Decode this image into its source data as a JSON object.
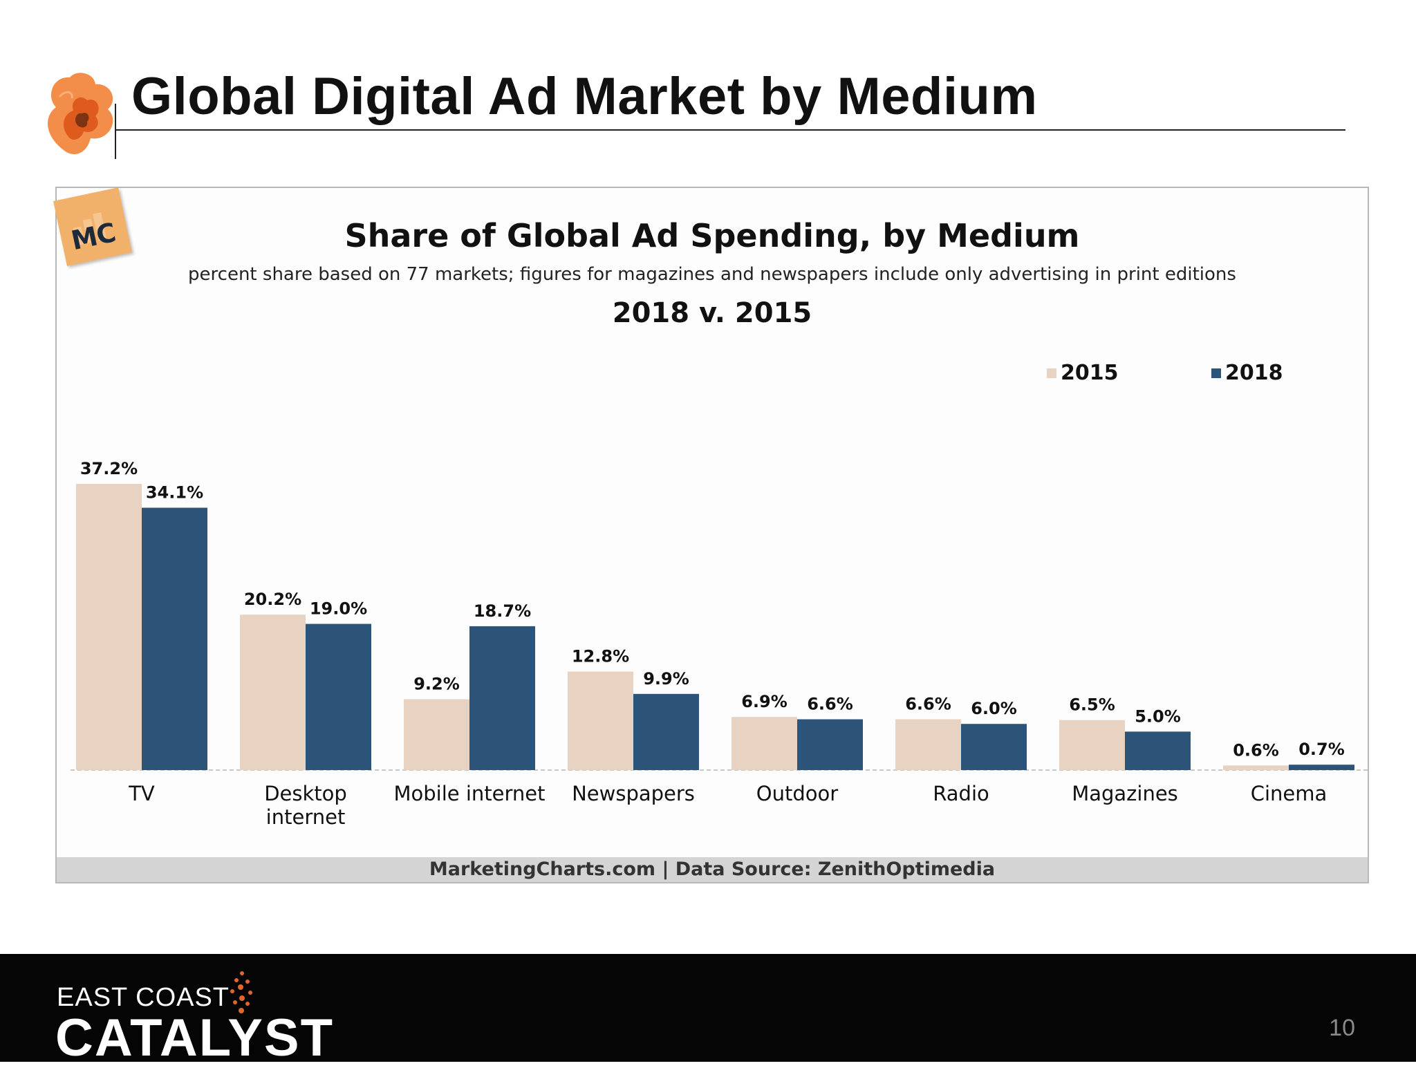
{
  "slide": {
    "title": "Global Digital Ad Market by Medium",
    "page_number": "10"
  },
  "badge": {
    "text": "MC"
  },
  "footer": {
    "line1": "EAST COAST",
    "line2": "CATALYST"
  },
  "colors": {
    "series_2015": "#e8d2c2",
    "series_2018": "#2c5478",
    "source_bar": "#d4d4d4"
  },
  "chart_data": {
    "type": "bar",
    "title": "Share of Global Ad Spending, by Medium",
    "subtitle": "percent share based on 77 markets; figures for magazines and newspapers include only advertising in print editions",
    "comparison": "2018 v. 2015",
    "categories": [
      "TV",
      "Desktop internet",
      "Mobile internet",
      "Newspapers",
      "Outdoor",
      "Radio",
      "Magazines",
      "Cinema"
    ],
    "category_lines": [
      [
        "TV"
      ],
      [
        "Desktop",
        "internet"
      ],
      [
        "Mobile internet"
      ],
      [
        "Newspapers"
      ],
      [
        "Outdoor"
      ],
      [
        "Radio"
      ],
      [
        "Magazines"
      ],
      [
        "Cinema"
      ]
    ],
    "series": [
      {
        "name": "2015",
        "values": [
          37.2,
          20.2,
          9.2,
          12.8,
          6.9,
          6.6,
          6.5,
          0.6
        ],
        "labels": [
          "37.2%",
          "20.2%",
          "9.2%",
          "12.8%",
          "6.9%",
          "6.6%",
          "6.5%",
          "0.6%"
        ]
      },
      {
        "name": "2018",
        "values": [
          34.1,
          19.0,
          18.7,
          9.9,
          6.6,
          6.0,
          5.0,
          0.7
        ],
        "labels": [
          "34.1%",
          "19.0%",
          "18.7%",
          "9.9%",
          "6.6%",
          "6.0%",
          "5.0%",
          "0.7%"
        ]
      }
    ],
    "ylim": [
      0,
      37.2
    ],
    "legend_position": "top-right",
    "grid": false,
    "source": "MarketingCharts.com | Data Source: ZenithOptimedia"
  }
}
